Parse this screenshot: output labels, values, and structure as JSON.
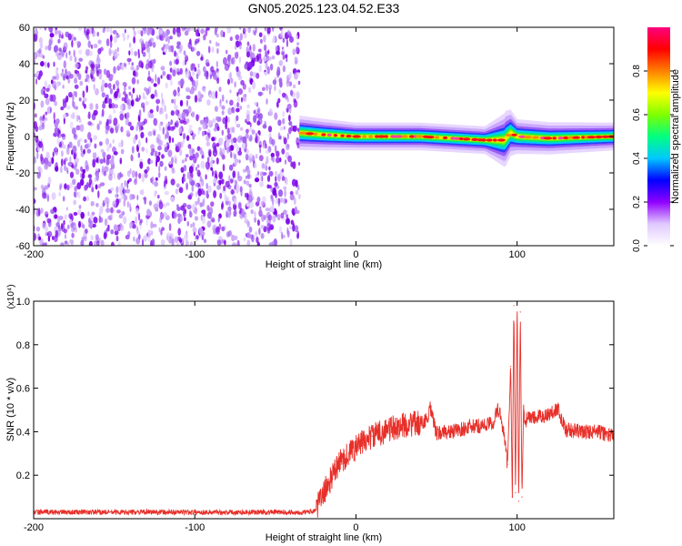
{
  "title": "GN05.2025.123.04.52.E33",
  "colors": {
    "frame": "#000000",
    "snr_line": "#e8302a",
    "speckle": "#7a00e6",
    "colorbar_stops": [
      "#ffffff",
      "#e0c8ff",
      "#9000ff",
      "#0000ff",
      "#00c8ff",
      "#00ff80",
      "#80ff00",
      "#ffff00",
      "#ff8000",
      "#ff0000",
      "#ff0080"
    ]
  },
  "chart_data": [
    {
      "type": "heatmap",
      "name": "spectrogram",
      "xlabel": "Height of straight line (km)",
      "ylabel": "Frequency (Hz)",
      "xlim": [
        -200,
        160
      ],
      "ylim": [
        -60,
        60
      ],
      "xticks": [
        -200,
        -100,
        0,
        100
      ],
      "xtick_labels": [
        "-200",
        "-100",
        "0",
        "100"
      ],
      "yticks": [
        60,
        40,
        20,
        0,
        -20,
        -40,
        -60
      ],
      "ytick_labels": [
        "60",
        "40",
        "20",
        "0",
        "-20",
        "-40",
        "-60"
      ],
      "noise_region_x": [
        -200,
        -35
      ],
      "signal_band": {
        "x_start": -35,
        "x_end": 160,
        "center_freq": [
          [
            -35,
            2
          ],
          [
            -20,
            1
          ],
          [
            0,
            0
          ],
          [
            40,
            0
          ],
          [
            80,
            -2
          ],
          [
            92,
            -2
          ],
          [
            96,
            2
          ],
          [
            100,
            0
          ],
          [
            120,
            -1
          ],
          [
            160,
            0
          ]
        ],
        "half_width_hz": [
          [
            -35,
            5
          ],
          [
            0,
            4
          ],
          [
            80,
            4
          ],
          [
            93,
            8
          ],
          [
            100,
            5
          ],
          [
            160,
            4
          ]
        ]
      },
      "colorbar": {
        "label": "Normalized spectral amplitude",
        "range": [
          0.0,
          1.0
        ],
        "ticks": [
          0.0,
          0.2,
          0.4,
          0.6,
          0.8
        ],
        "tick_labels": [
          "0.0",
          "0.2",
          "0.4",
          "0.6",
          "0.8"
        ]
      }
    },
    {
      "type": "line",
      "name": "snr",
      "xlabel": "Height of straight line (km)",
      "ylabel": "SNR (10 * v/v)",
      "multiplier_label": "(x10⁴)",
      "xlim": [
        -200,
        160
      ],
      "ylim": [
        0,
        1.0
      ],
      "xticks": [
        -200,
        -100,
        0,
        100
      ],
      "xtick_labels": [
        "-200",
        "-100",
        "0",
        "100"
      ],
      "yticks": [
        0.2,
        0.4,
        0.6,
        0.8,
        1.0
      ],
      "ytick_labels": [
        "0.2",
        "0.4",
        "0.6",
        "0.8",
        "1.0"
      ],
      "x": [
        -200,
        -150,
        -100,
        -50,
        -30,
        -25,
        -20,
        -10,
        0,
        10,
        20,
        30,
        40,
        45,
        46,
        50,
        55,
        60,
        70,
        80,
        85,
        88,
        90,
        92,
        94,
        96,
        97,
        98,
        99,
        100,
        101,
        102,
        103,
        104,
        105,
        108,
        110,
        115,
        120,
        125,
        130,
        140,
        150,
        160
      ],
      "y": [
        0.03,
        0.03,
        0.03,
        0.03,
        0.03,
        0.04,
        0.12,
        0.26,
        0.33,
        0.38,
        0.41,
        0.43,
        0.44,
        0.46,
        0.51,
        0.39,
        0.4,
        0.4,
        0.42,
        0.43,
        0.44,
        0.5,
        0.47,
        0.38,
        0.25,
        0.7,
        0.1,
        0.98,
        0.12,
        1.0,
        0.08,
        0.95,
        0.1,
        0.5,
        0.45,
        0.47,
        0.46,
        0.47,
        0.48,
        0.51,
        0.41,
        0.4,
        0.4,
        0.38
      ]
    }
  ]
}
